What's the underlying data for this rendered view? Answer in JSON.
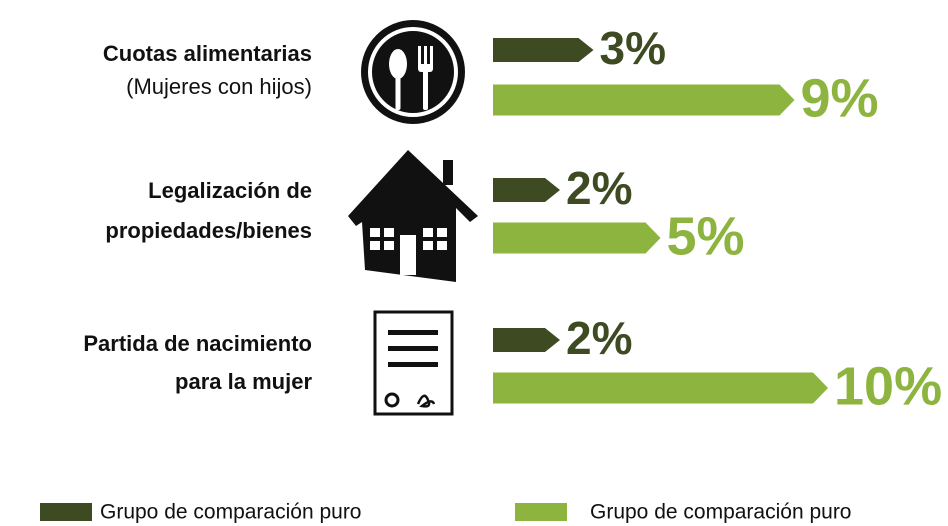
{
  "chart_data": {
    "type": "bar",
    "orientation": "horizontal",
    "categories": [
      [
        "Cuotas alimentarias"
      ],
      [
        "Legalización de",
        "propiedades/bienes"
      ],
      [
        "Partida de nacimiento",
        "para la mujer"
      ]
    ],
    "category_notes": [
      "(Mujeres con hijos)",
      null,
      null
    ],
    "xlim": [
      0,
      10
    ],
    "series": [
      {
        "name": "Grupo de comparación puro",
        "color": "#3d4a22",
        "values": [
          3,
          2,
          2
        ],
        "value_labels": [
          "3%",
          "2%",
          "2%"
        ]
      },
      {
        "name": "Grupo de comparación puro",
        "color": "#8db43e",
        "values": [
          9,
          5,
          10
        ],
        "value_labels": [
          "9%",
          "5%",
          "10%"
        ]
      }
    ]
  }
}
